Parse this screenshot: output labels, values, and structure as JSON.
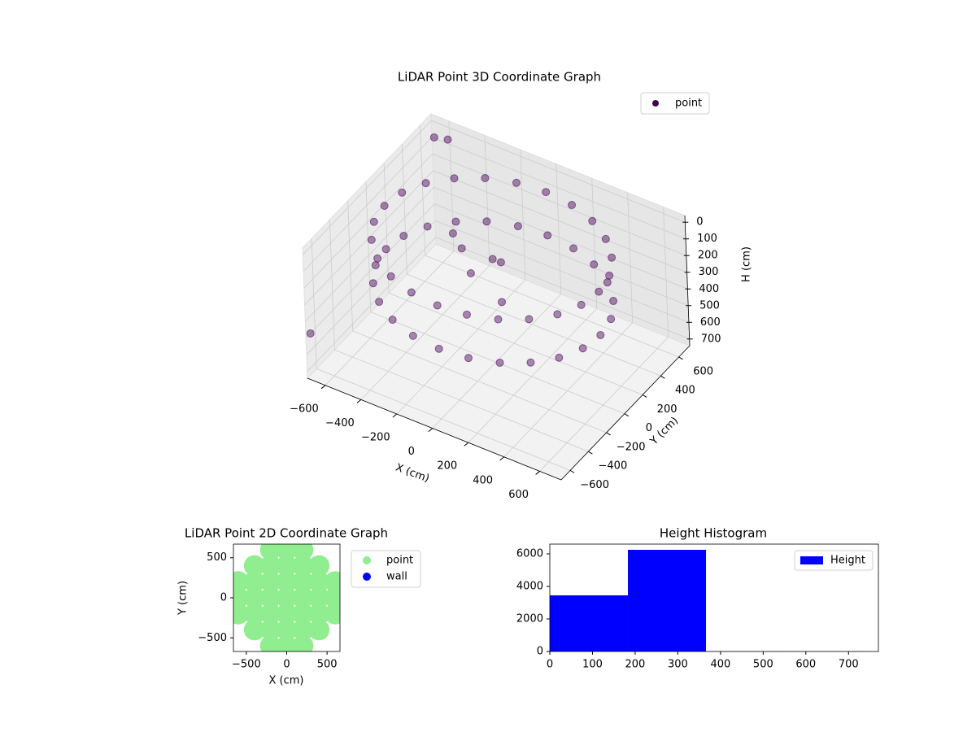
{
  "chart_data": [
    {
      "type": "scatter3d",
      "title": "LiDAR Point 3D Coordinate Graph",
      "xlabel": "X (cm)",
      "ylabel": "Y (cm)",
      "zlabel": "H (cm)",
      "xlim": [
        -700,
        720
      ],
      "ylim": [
        -700,
        720
      ],
      "zlim": [
        -40,
        740
      ],
      "zinverted": true,
      "xticks": [
        {
          "value": -600,
          "label": "−600"
        },
        {
          "value": -400,
          "label": "−400"
        },
        {
          "value": -200,
          "label": "−200"
        },
        0,
        200,
        400,
        600
      ],
      "yticks": [
        {
          "value": -600,
          "label": "−600"
        },
        {
          "value": -400,
          "label": "−400"
        },
        {
          "value": -200,
          "label": "−200"
        },
        0,
        200,
        400,
        600
      ],
      "zticks": [
        0,
        100,
        200,
        300,
        400,
        500,
        600,
        700
      ],
      "grid": true,
      "legend": "upper right",
      "series": [
        {
          "name": "point",
          "color": "#440154",
          "x": [
            600,
            580,
            520,
            424,
            300,
            155,
            0,
            -155,
            -300,
            -424,
            -520,
            -580,
            -600,
            -580,
            -520,
            -424,
            -300,
            -155,
            0,
            155,
            300,
            424,
            520,
            580,
            600,
            580,
            520,
            424,
            300,
            155,
            0,
            -155,
            -300,
            -424,
            -520,
            -580,
            -600,
            -580,
            -520,
            -424,
            -300,
            -155,
            0,
            155,
            300,
            424,
            520,
            580,
            -250,
            -150,
            -50,
            50,
            100,
            -350,
            -650,
            -700,
            -600
          ],
          "y": [
            0,
            155,
            300,
            424,
            520,
            580,
            600,
            580,
            520,
            424,
            300,
            155,
            0,
            -155,
            -300,
            -424,
            -520,
            -580,
            -600,
            -580,
            -520,
            -424,
            -300,
            -155,
            0,
            155,
            300,
            424,
            520,
            580,
            600,
            580,
            520,
            424,
            300,
            155,
            0,
            -155,
            -300,
            -424,
            -520,
            -580,
            -600,
            -580,
            -520,
            -424,
            -300,
            -155,
            150,
            50,
            100,
            0,
            -100,
            250,
            650,
            -650,
            700
          ],
          "z": [
            60,
            60,
            60,
            60,
            60,
            60,
            60,
            60,
            60,
            60,
            60,
            60,
            60,
            60,
            60,
            60,
            60,
            60,
            60,
            60,
            60,
            60,
            60,
            60,
            320,
            320,
            320,
            320,
            320,
            320,
            320,
            320,
            320,
            320,
            320,
            320,
            320,
            320,
            320,
            320,
            320,
            320,
            320,
            320,
            320,
            320,
            320,
            320,
            250,
            300,
            200,
            120,
            280,
            260,
            40,
            500,
            60
          ]
        }
      ]
    },
    {
      "type": "scatter",
      "title": "LiDAR Point 2D Coordinate Graph",
      "xlabel": "X (cm)",
      "ylabel": "Y (cm)",
      "xlim": [
        -660,
        660
      ],
      "ylim": [
        -670,
        670
      ],
      "xticks": [
        {
          "value": -500,
          "label": "−500"
        },
        0,
        500
      ],
      "yticks": [
        {
          "value": -500,
          "label": "−500"
        },
        0,
        500
      ],
      "legend": "outside right",
      "series": [
        {
          "name": "point",
          "color": "#90ee90",
          "x": [
            -600,
            -600,
            -600,
            -400,
            -400,
            -400,
            -400,
            -400,
            -200,
            -200,
            -200,
            -200,
            -200,
            -200,
            -200,
            0,
            0,
            0,
            0,
            0,
            0,
            0,
            200,
            200,
            200,
            200,
            200,
            200,
            200,
            400,
            400,
            400,
            400,
            400,
            600,
            600,
            600
          ],
          "y": [
            -200,
            0,
            200,
            -400,
            -200,
            0,
            200,
            400,
            -600,
            -400,
            -200,
            0,
            200,
            400,
            600,
            -600,
            -400,
            -200,
            0,
            200,
            400,
            600,
            -600,
            -400,
            -200,
            0,
            200,
            400,
            600,
            -400,
            -200,
            0,
            200,
            400,
            -200,
            0,
            200
          ]
        },
        {
          "name": "wall",
          "color": "#0000ff",
          "x": [],
          "y": []
        }
      ]
    },
    {
      "type": "histogram",
      "title": "Height Histogram",
      "xlim": [
        0,
        770
      ],
      "ylim": [
        0,
        6600
      ],
      "xticks": [
        0,
        100,
        200,
        300,
        400,
        500,
        600,
        700
      ],
      "yticks": [
        0,
        2000,
        4000,
        6000
      ],
      "legend": "upper right",
      "bins": [
        0,
        183,
        366,
        549,
        732
      ],
      "series": [
        {
          "name": "Height",
          "color": "#0000ff",
          "values": [
            3450,
            6250,
            10,
            5
          ]
        }
      ]
    }
  ]
}
